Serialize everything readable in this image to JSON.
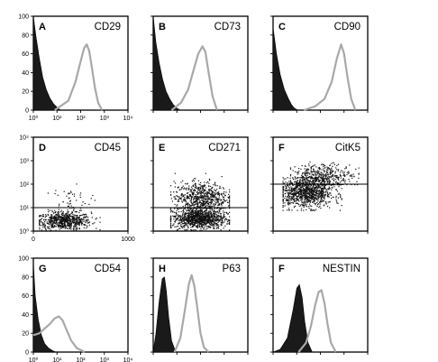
{
  "chart_data": [
    {
      "panel": "A",
      "marker": "CD29",
      "type": "area",
      "x_scale": "log",
      "xlim": [
        1,
        10000
      ],
      "ylim": [
        0,
        100
      ],
      "x_ticks": [
        "10⁰",
        "10¹",
        "10²",
        "10³",
        "10⁴"
      ],
      "y_ticks": [
        "0",
        "20",
        "40",
        "60",
        "80",
        "100"
      ],
      "series": [
        {
          "role": "control",
          "style": "filled-black",
          "x": [
            1,
            1.3,
            1.8,
            2.5,
            3.5,
            5,
            7,
            10,
            14
          ],
          "y": [
            100,
            78,
            55,
            35,
            22,
            13,
            7,
            3,
            0
          ]
        },
        {
          "role": "stained",
          "style": "gray-outline",
          "x": [
            8,
            30,
            60,
            100,
            140,
            180,
            230,
            300,
            400,
            550,
            800
          ],
          "y": [
            0,
            10,
            30,
            52,
            66,
            70,
            63,
            45,
            24,
            8,
            0
          ]
        }
      ]
    },
    {
      "panel": "B",
      "marker": "CD73",
      "type": "area",
      "x_scale": "log",
      "xlim": [
        1,
        10000
      ],
      "ylim": [
        0,
        100
      ],
      "x_ticks": [],
      "y_ticks": [],
      "series": [
        {
          "role": "control",
          "style": "filled-black",
          "x": [
            1,
            1.3,
            1.8,
            2.5,
            3.5,
            5,
            7,
            10,
            14
          ],
          "y": [
            100,
            72,
            50,
            33,
            20,
            12,
            6,
            2,
            0
          ]
        },
        {
          "role": "stained",
          "style": "gray-outline",
          "x": [
            6,
            15,
            30,
            50,
            80,
            120,
            160,
            220,
            320,
            500
          ],
          "y": [
            0,
            8,
            22,
            42,
            60,
            68,
            62,
            40,
            15,
            0
          ]
        }
      ]
    },
    {
      "panel": "C",
      "marker": "CD90",
      "type": "area",
      "x_scale": "log",
      "xlim": [
        1,
        10000
      ],
      "ylim": [
        0,
        100
      ],
      "x_ticks": [],
      "y_ticks": [],
      "series": [
        {
          "role": "control",
          "style": "filled-black",
          "x": [
            1,
            1.4,
            2,
            3,
            4.5,
            6,
            8,
            11
          ],
          "y": [
            88,
            60,
            38,
            22,
            12,
            6,
            2,
            0
          ]
        },
        {
          "role": "stained",
          "style": "gray-outline",
          "x": [
            20,
            60,
            150,
            300,
            500,
            750,
            1000,
            1400,
            2000,
            3000
          ],
          "y": [
            0,
            4,
            12,
            30,
            55,
            70,
            60,
            35,
            12,
            0
          ]
        }
      ]
    },
    {
      "panel": "D",
      "marker": "CD45",
      "type": "scatter",
      "x_scale": "linear",
      "xlim": [
        0,
        1000
      ],
      "y_scale": "log",
      "ylim": [
        1,
        10000
      ],
      "x_ticks": [
        "0",
        "1000"
      ],
      "y_ticks": [
        "10⁰",
        "10¹",
        "10²",
        "10³",
        "10⁴"
      ],
      "gate_y": 10,
      "clusters": [
        {
          "n": 700,
          "x_range": [
            60,
            700
          ],
          "y_range": [
            1,
            7
          ],
          "x_center": 320,
          "logy_center": 0.45
        },
        {
          "n": 60,
          "x_range": [
            150,
            650
          ],
          "y_range": [
            8,
            200
          ],
          "x_center": 380,
          "logy_center": 1.3
        }
      ]
    },
    {
      "panel": "E",
      "marker": "CD271",
      "type": "scatter",
      "x_scale": "linear",
      "xlim": [
        0,
        1000
      ],
      "y_scale": "log",
      "ylim": [
        1,
        10000
      ],
      "x_ticks": [],
      "y_ticks": [],
      "gate_y": 10,
      "clusters": [
        {
          "n": 1100,
          "x_range": [
            180,
            800
          ],
          "y_range": [
            1,
            10
          ],
          "x_center": 480,
          "logy_center": 0.55
        },
        {
          "n": 700,
          "x_range": [
            180,
            800
          ],
          "y_range": [
            10,
            300
          ],
          "x_center": 500,
          "logy_center": 1.45
        }
      ]
    },
    {
      "panel": "F",
      "marker": "CitK5",
      "type": "scatter",
      "x_scale": "linear",
      "xlim": [
        0,
        1000
      ],
      "y_scale": "log",
      "ylim": [
        1,
        10000
      ],
      "x_ticks": [],
      "y_ticks": [],
      "gate_y": 100,
      "clusters": [
        {
          "n": 1000,
          "x_range": [
            100,
            720
          ],
          "y_range": [
            8,
            200
          ],
          "x_center": 350,
          "logy_center": 1.65
        },
        {
          "n": 450,
          "x_range": [
            180,
            900
          ],
          "y_range": [
            100,
            1500
          ],
          "x_center": 520,
          "logy_center": 2.35
        }
      ]
    },
    {
      "panel": "G",
      "marker": "CD54",
      "type": "area",
      "x_scale": "log",
      "xlim": [
        1,
        10000
      ],
      "ylim": [
        0,
        100
      ],
      "x_ticks": [
        "10⁰",
        "10¹",
        "10²",
        "10³",
        "10⁴"
      ],
      "y_ticks": [
        "0",
        "20",
        "40",
        "60",
        "80",
        "100"
      ],
      "series": [
        {
          "role": "control",
          "style": "filled-black",
          "x": [
            1,
            1.2,
            1.6,
            2.2,
            3,
            4.5,
            6.5,
            9
          ],
          "y": [
            95,
            60,
            35,
            18,
            9,
            4,
            1.5,
            0
          ]
        },
        {
          "role": "stained",
          "style": "gray-outline",
          "x": [
            1,
            1.8,
            3,
            5,
            8,
            12,
            17,
            25,
            40,
            70,
            150
          ],
          "y": [
            18,
            20,
            25,
            30,
            36,
            38,
            34,
            24,
            12,
            4,
            0
          ]
        }
      ]
    },
    {
      "panel": "H",
      "marker": "P63",
      "type": "area",
      "x_scale": "log",
      "xlim": [
        1,
        10000
      ],
      "ylim": [
        0,
        100
      ],
      "x_ticks": [],
      "y_ticks": [],
      "series": [
        {
          "role": "control",
          "style": "filled-black",
          "x": [
            1,
            1.3,
            1.8,
            2.4,
            3,
            3.6,
            4.5,
            6,
            9
          ],
          "y": [
            0,
            20,
            55,
            78,
            80,
            65,
            38,
            12,
            0
          ]
        },
        {
          "role": "stained",
          "style": "gray-outline",
          "x": [
            8,
            14,
            22,
            32,
            42,
            55,
            75,
            100,
            140,
            220
          ],
          "y": [
            0,
            15,
            45,
            72,
            82,
            70,
            45,
            20,
            5,
            0
          ]
        }
      ]
    },
    {
      "panel": "F",
      "marker": "NESTIN",
      "type": "area",
      "x_scale": "log",
      "xlim": [
        1,
        10000
      ],
      "ylim": [
        0,
        100
      ],
      "x_ticks": [],
      "y_ticks": [],
      "series": [
        {
          "role": "control",
          "style": "filled-black",
          "x": [
            1,
            2,
            4,
            7,
            10,
            13,
            17,
            22,
            30,
            45
          ],
          "y": [
            0,
            3,
            15,
            45,
            68,
            72,
            58,
            32,
            10,
            0
          ]
        },
        {
          "role": "stained",
          "style": "gray-outline",
          "x": [
            12,
            25,
            40,
            60,
            85,
            110,
            150,
            200,
            280,
            450
          ],
          "y": [
            0,
            10,
            28,
            50,
            64,
            66,
            52,
            30,
            10,
            0
          ]
        }
      ]
    }
  ]
}
